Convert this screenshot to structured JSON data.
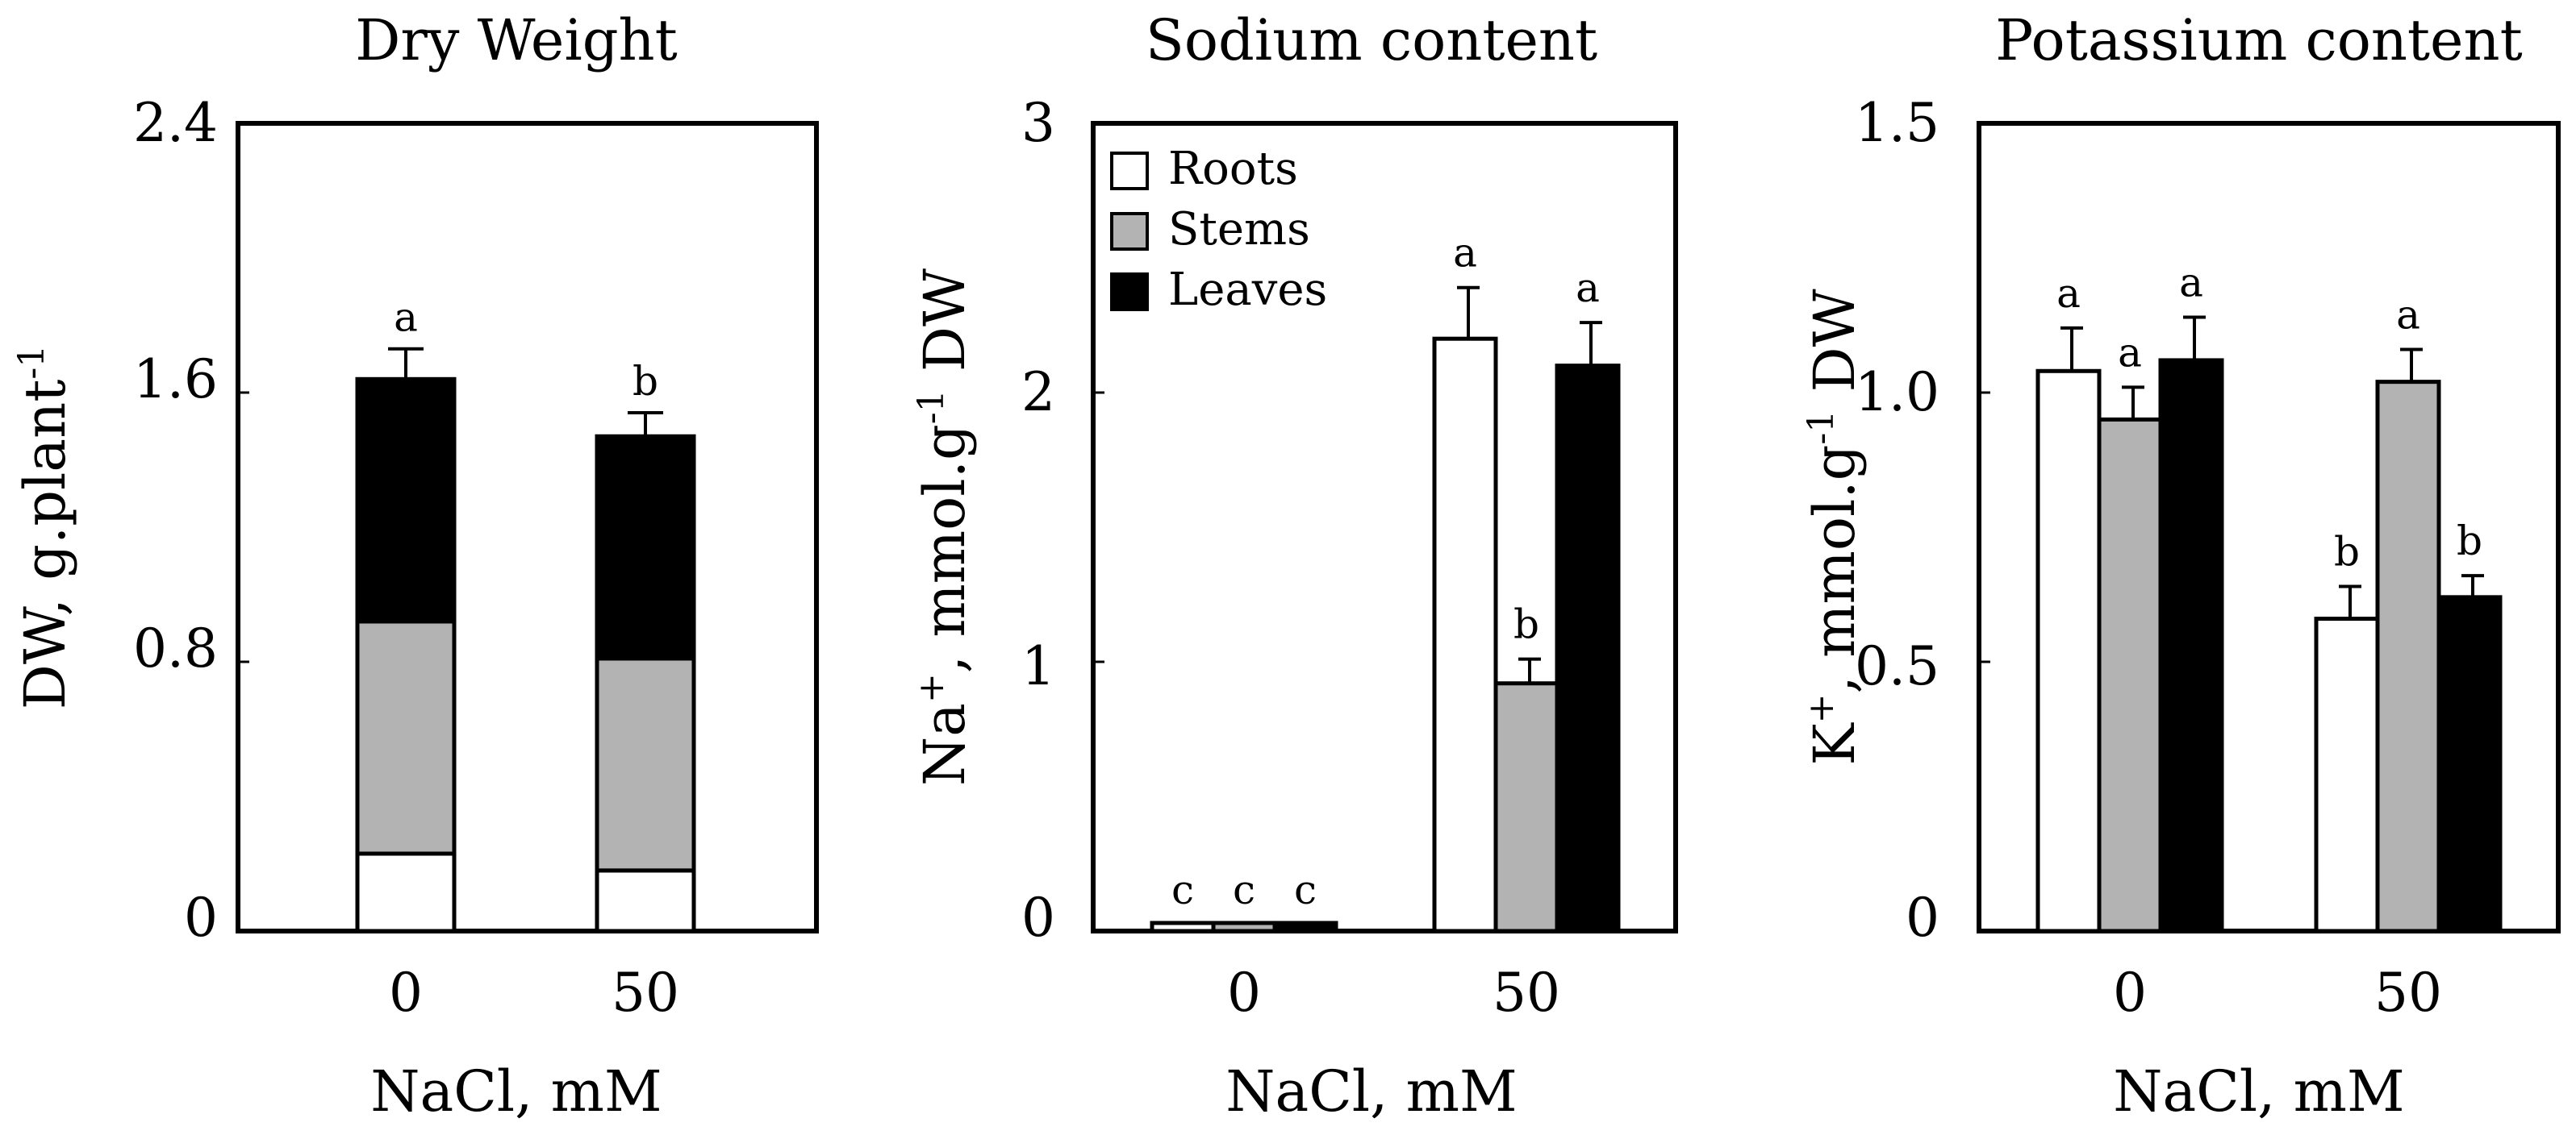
{
  "chart_data": [
    {
      "type": "bar",
      "stacked": true,
      "title": "Dry Weight",
      "ylabel": "DW, g.plant",
      "ylabel_sup": "-1",
      "xlabel": "NaCl, mM",
      "categories": [
        "0",
        "50"
      ],
      "ylim": [
        0,
        2.4
      ],
      "yticks": [
        "0",
        "0.8",
        "1.6",
        "2.4"
      ],
      "yticks_values": [
        0,
        0.8,
        1.6,
        2.4
      ],
      "series": [
        {
          "values": [
            0.23,
            0.18
          ],
          "color": "#ffffff"
        },
        {
          "values": [
            0.69,
            0.63
          ],
          "color": "#b3b3b3"
        },
        {
          "values": [
            0.72,
            0.66
          ],
          "color": "#000000"
        }
      ],
      "errors": [
        0.09,
        0.07
      ],
      "significance": [
        "a",
        "b"
      ]
    },
    {
      "type": "bar",
      "title": "Sodium content",
      "ylabel": "Na",
      "ylabel_sup1": "+",
      "ylabel_mid": ", mmol.g",
      "ylabel_sup2": "-1",
      "ylabel_end": " DW",
      "xlabel": "NaCl, mM",
      "categories": [
        "0",
        "50"
      ],
      "ylim": [
        0,
        3
      ],
      "yticks": [
        "0",
        "1",
        "2",
        "3"
      ],
      "yticks_values": [
        0,
        1,
        2,
        3
      ],
      "legend_position": "top-left",
      "series": [
        {
          "name": "Roots",
          "color": "#ffffff",
          "values": [
            0.03,
            2.2
          ],
          "errors": [
            0,
            0.19
          ],
          "significance": [
            "c",
            "a"
          ]
        },
        {
          "name": "Stems",
          "color": "#b3b3b3",
          "values": [
            0.03,
            0.92
          ],
          "errors": [
            0,
            0.09
          ],
          "significance": [
            "c",
            "b"
          ]
        },
        {
          "name": "Leaves",
          "color": "#000000",
          "values": [
            0.03,
            2.1
          ],
          "errors": [
            0,
            0.16
          ],
          "significance": [
            "c",
            "a"
          ]
        }
      ]
    },
    {
      "type": "bar",
      "title": "Potassium content",
      "ylabel": "K",
      "ylabel_sup1": "+",
      "ylabel_mid": ", mmol.g",
      "ylabel_sup2": "-1",
      "ylabel_end": " DW",
      "xlabel": "NaCl, mM",
      "categories": [
        "0",
        "50"
      ],
      "ylim": [
        0,
        1.5
      ],
      "yticks": [
        "0",
        "0.5",
        "1.0",
        "1.5"
      ],
      "yticks_values": [
        0,
        0.5,
        1.0,
        1.5
      ],
      "series": [
        {
          "color": "#ffffff",
          "values": [
            1.04,
            0.58
          ],
          "errors": [
            0.08,
            0.06
          ],
          "significance": [
            "a",
            "b"
          ]
        },
        {
          "color": "#b3b3b3",
          "values": [
            0.95,
            1.02
          ],
          "errors": [
            0.06,
            0.06
          ],
          "significance": [
            "a",
            "a"
          ]
        },
        {
          "color": "#000000",
          "values": [
            1.06,
            0.62
          ],
          "errors": [
            0.08,
            0.04
          ],
          "significance": [
            "a",
            "b"
          ]
        }
      ]
    }
  ]
}
